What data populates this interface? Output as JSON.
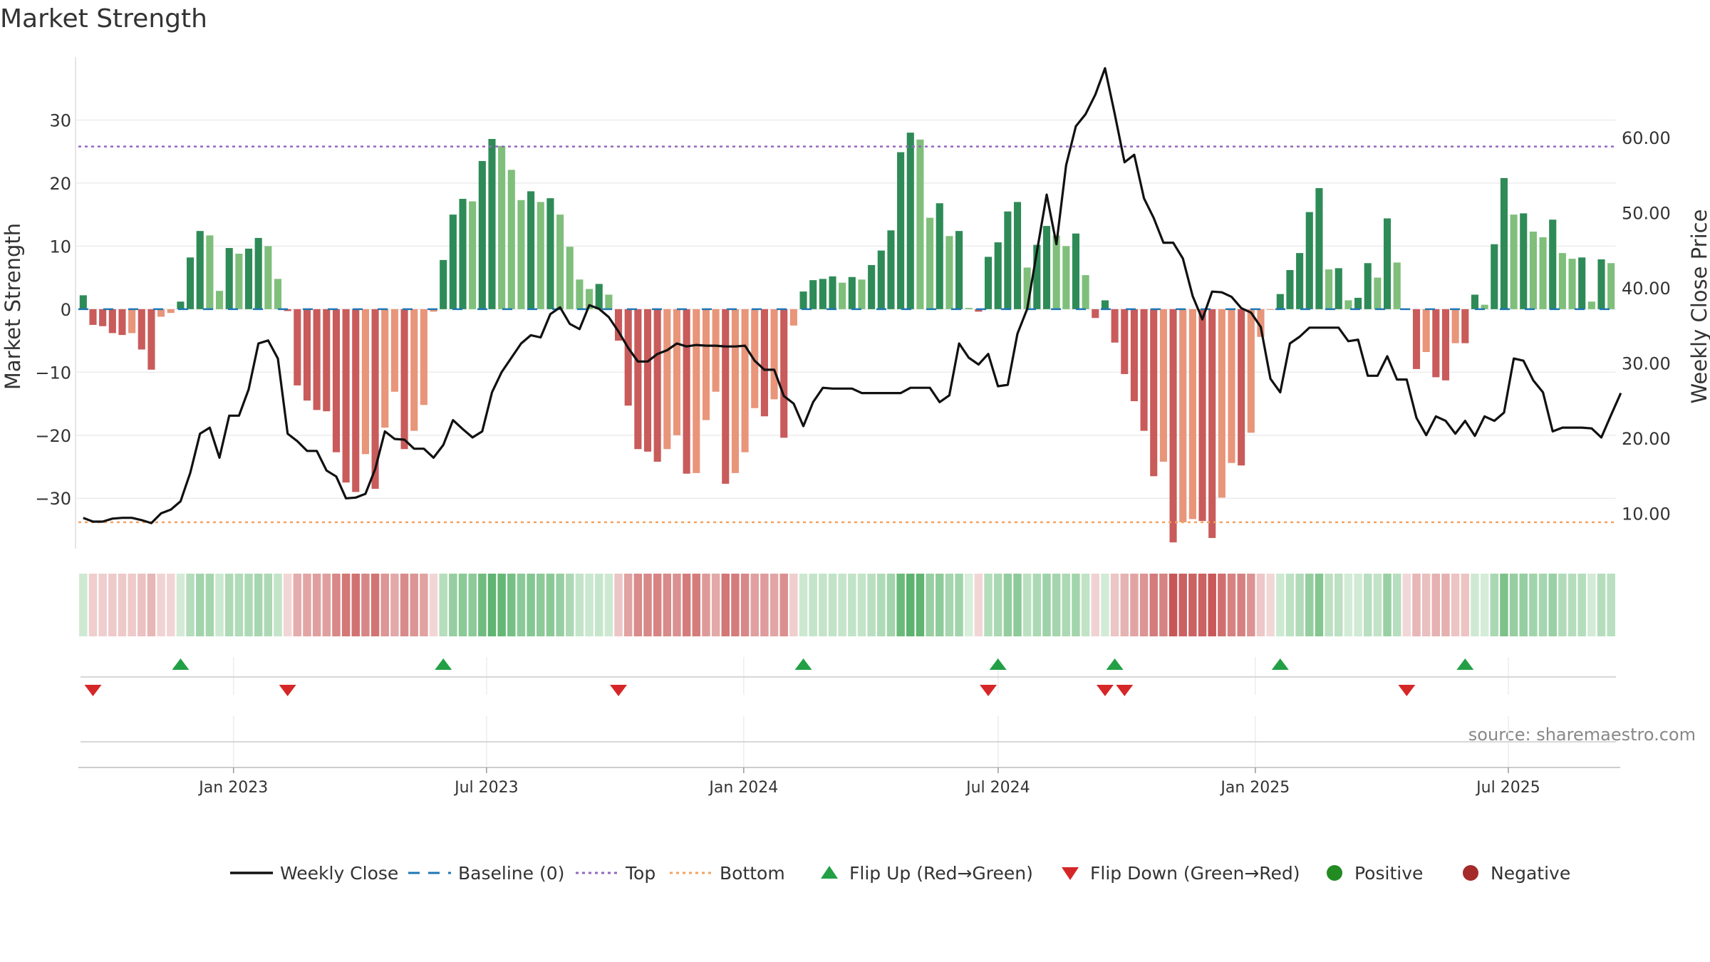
{
  "chart_data": {
    "type": "bar",
    "title": "Market Strength",
    "ylabel": "Market Strength",
    "y2label": "Weekly Close Price",
    "ylim": [
      -38,
      40
    ],
    "y2lim": [
      5.3,
      70.7
    ],
    "yticks": [
      -30,
      -20,
      -10,
      0,
      10,
      20,
      30
    ],
    "y2ticks": [
      10,
      20,
      30,
      40,
      50,
      60
    ],
    "y2tick_labels": [
      "10.00",
      "20.00",
      "30.00",
      "40.00",
      "50.00",
      "60.00"
    ],
    "x_domain_days": [
      0,
      1100
    ],
    "x_start_date": "2022-09-12",
    "xticks": [
      {
        "label": "Jan 2023",
        "day": 111
      },
      {
        "label": "Jul 2023",
        "day": 292
      },
      {
        "label": "Jan 2024",
        "day": 476
      },
      {
        "label": "Jul 2024",
        "day": 658
      },
      {
        "label": "Jan 2025",
        "day": 842
      },
      {
        "label": "Jul 2025",
        "day": 1023
      }
    ],
    "top_level": 25.8,
    "bottom_level": -33.8,
    "strength": [
      2.2,
      -2.5,
      -2.7,
      -3.8,
      -4.1,
      -3.8,
      -6.4,
      -9.6,
      -1.2,
      -0.6,
      1.2,
      8.2,
      12.4,
      11.7,
      2.9,
      9.7,
      8.8,
      9.6,
      11.3,
      10.0,
      4.8,
      -0.3,
      -12.1,
      -14.5,
      -16.0,
      -16.2,
      -22.7,
      -27.5,
      -29.0,
      -23.0,
      -28.5,
      -18.8,
      -13.1,
      -22.2,
      -19.3,
      -15.2,
      -0.4,
      7.8,
      15.0,
      17.5,
      17.1,
      23.5,
      27.0,
      25.9,
      22.1,
      17.3,
      18.7,
      17.0,
      17.6,
      15.0,
      9.9,
      4.7,
      3.2,
      4.0,
      2.3,
      -5.0,
      -15.3,
      -22.2,
      -22.6,
      -24.2,
      -22.2,
      -20.0,
      -26.1,
      -26.0,
      -17.6,
      -13.1,
      -27.7,
      -26.0,
      -22.7,
      -15.7,
      -17.0,
      -14.3,
      -20.4,
      -2.6,
      2.8,
      4.6,
      4.8,
      5.2,
      4.2,
      5.1,
      4.7,
      7.0,
      9.3,
      12.5,
      24.9,
      28.0,
      26.9,
      14.5,
      16.8,
      11.6,
      12.4,
      0.2,
      -0.4,
      8.3,
      10.6,
      15.5,
      17.0,
      6.6,
      10.2,
      13.2,
      11.7,
      10.0,
      12.0,
      5.4,
      -1.4,
      1.4,
      -5.3,
      -10.3,
      -14.6,
      -19.3,
      -26.5,
      -24.2,
      -37.0,
      -33.8,
      -33.3,
      -33.6,
      -36.3,
      -29.9,
      -24.4,
      -24.8,
      -19.6,
      -4.4,
      -0.1,
      2.4,
      6.2,
      8.9,
      15.4,
      19.2,
      6.3,
      6.5,
      1.4,
      1.8,
      7.3,
      5.0,
      14.4,
      7.4,
      -0.1,
      -9.5,
      -6.8,
      -10.8,
      -11.3,
      -5.4,
      -5.4,
      2.3,
      0.7,
      10.3,
      20.8,
      15.0,
      15.2,
      12.3,
      11.4,
      14.2,
      8.9,
      8.0,
      8.2,
      1.2,
      7.9,
      7.3
    ],
    "weekly_close": [
      9.4,
      8.9,
      8.9,
      9.3,
      9.4,
      9.4,
      9.1,
      8.7,
      10.0,
      10.5,
      11.6,
      15.4,
      20.6,
      21.4,
      17.4,
      23.0,
      23.0,
      26.5,
      32.6,
      33.0,
      30.6,
      20.6,
      19.6,
      18.3,
      18.3,
      15.7,
      14.9,
      12.0,
      12.1,
      12.6,
      15.9,
      20.9,
      19.9,
      19.8,
      18.6,
      18.6,
      17.4,
      19.1,
      22.4,
      21.2,
      20.1,
      20.9,
      26.1,
      28.8,
      30.7,
      32.6,
      33.7,
      33.4,
      36.5,
      37.4,
      35.2,
      34.5,
      37.7,
      37.2,
      36.1,
      34.2,
      32.0,
      30.2,
      30.2,
      31.2,
      31.7,
      32.6,
      32.2,
      32.4,
      32.3,
      32.3,
      32.2,
      32.2,
      32.3,
      30.3,
      29.1,
      29.1,
      25.6,
      24.6,
      21.6,
      24.8,
      26.7,
      26.6,
      26.6,
      26.6,
      26.0,
      26.0,
      26.0,
      26.0,
      26.0,
      26.7,
      26.7,
      26.7,
      24.8,
      25.7,
      32.6,
      30.7,
      29.8,
      31.2,
      26.9,
      27.1,
      33.9,
      37.2,
      44.8,
      52.4,
      45.8,
      56.3,
      61.5,
      63.1,
      65.7,
      69.2,
      63.1,
      56.7,
      57.7,
      51.9,
      49.3,
      46.0,
      46.0,
      43.9,
      38.9,
      35.8,
      39.5,
      39.4,
      38.8,
      37.3,
      36.7,
      34.8,
      27.9,
      26.1,
      32.6,
      33.5,
      34.7,
      34.7,
      34.7,
      34.7,
      32.9,
      33.1,
      28.3,
      28.3,
      30.9,
      27.8,
      27.8,
      22.7,
      20.4,
      22.9,
      22.3,
      20.6,
      22.3,
      20.3,
      22.9,
      22.3,
      23.4,
      30.6,
      30.3,
      27.7,
      26.1,
      20.9,
      21.4,
      21.4,
      21.4,
      21.3,
      20.1,
      23.1,
      26.0
    ],
    "series": [
      {
        "name": "Weekly Close",
        "color": "#111111"
      },
      {
        "name": "Baseline (0)",
        "color": "#1f77b4"
      },
      {
        "name": "Top",
        "color": "#9467bd"
      },
      {
        "name": "Bottom",
        "color": "#ff7f0e"
      }
    ],
    "flips": {
      "up": [
        10,
        37,
        74,
        94,
        106,
        123,
        142
      ],
      "down": [
        1,
        21,
        55,
        93,
        105,
        107,
        136
      ]
    },
    "legend": {
      "position": "bottom",
      "items": [
        {
          "label": "Weekly Close",
          "kind": "line",
          "color": "#111111"
        },
        {
          "label": "Baseline (0)",
          "kind": "dash",
          "color": "#1f77b4"
        },
        {
          "label": "Top",
          "kind": "dot",
          "color": "#9467bd"
        },
        {
          "label": "Bottom",
          "kind": "dot",
          "color": "#f4a261"
        },
        {
          "label": "Flip Up (Red→Green)",
          "kind": "tri-up",
          "color": "#23a046"
        },
        {
          "label": "Flip Down (Green→Red)",
          "kind": "tri-down",
          "color": "#d62728"
        },
        {
          "label": "Positive",
          "kind": "circle",
          "color": "#228b22"
        },
        {
          "label": "Negative",
          "kind": "circle",
          "color": "#a52a2a"
        }
      ]
    },
    "annotation": "source: sharemaestro.com",
    "colors": {
      "pos_dark": "#2e8b57",
      "pos_light": "#7fbf7b",
      "neg_dark": "#c95b5b",
      "neg_light": "#e8957a",
      "grid": "#ececec"
    }
  }
}
